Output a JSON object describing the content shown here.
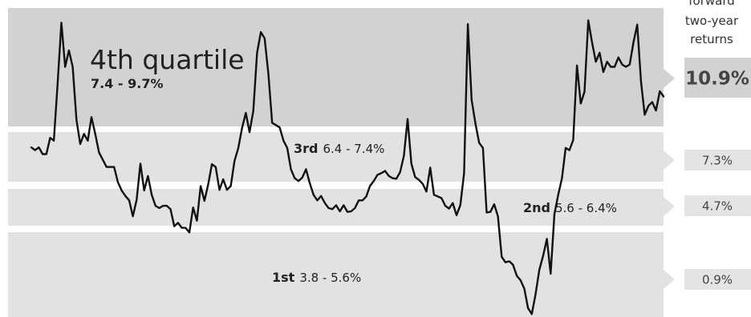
{
  "chart_data": {
    "type": "line",
    "title": "",
    "xlabel": "",
    "ylabel": "",
    "ylim": [
      3.8,
      10.0
    ],
    "grid": false,
    "legend": "none",
    "colors": {
      "line": "#111111",
      "band_q4": "#d2d2d2",
      "band_q3": "#e2e2e2",
      "band_q2": "#e2e2e2",
      "band_q1": "#e2e2e2",
      "return_box_q4": "#d2d2d2",
      "return_box": "#e4e4e4"
    },
    "header": {
      "line1": "forward",
      "line2": "two-year",
      "line3": "returns"
    },
    "bands": [
      {
        "id": "q4",
        "name": "4th quartile",
        "range": "7.4 - 9.7%",
        "low": 7.4,
        "high": 9.7,
        "forward_return": "10.9%"
      },
      {
        "id": "q3",
        "name": "3rd",
        "range": "6.4 - 7.4%",
        "low": 6.4,
        "high": 7.4,
        "forward_return": "7.3%"
      },
      {
        "id": "q2",
        "name": "2nd",
        "range": "5.6 - 6.4%",
        "low": 5.6,
        "high": 6.4,
        "forward_return": "4.7%"
      },
      {
        "id": "q1",
        "name": "1st",
        "range": "3.8 - 5.6%",
        "low": 3.8,
        "high": 5.6,
        "forward_return": "0.9%"
      }
    ],
    "series": [
      {
        "values": [
          7.07,
          7.02,
          7.07,
          6.95,
          6.95,
          7.24,
          7.19,
          8.36,
          9.66,
          8.72,
          9.07,
          8.72,
          7.59,
          7.13,
          7.31,
          7.19,
          7.65,
          7.31,
          6.98,
          6.85,
          6.72,
          6.72,
          6.72,
          6.45,
          6.3,
          6.2,
          6.12,
          5.83,
          6.13,
          6.78,
          6.3,
          6.56,
          6.22,
          6.02,
          5.98,
          6.02,
          6.02,
          5.96,
          5.65,
          5.71,
          5.62,
          5.62,
          5.53,
          5.99,
          5.75,
          6.38,
          6.11,
          6.41,
          6.77,
          6.72,
          6.31,
          6.5,
          6.31,
          6.38,
          6.83,
          7.06,
          7.42,
          7.74,
          7.34,
          7.78,
          9.02,
          9.46,
          9.33,
          8.57,
          7.53,
          7.48,
          7.43,
          7.19,
          7.06,
          6.68,
          6.52,
          6.47,
          6.53,
          6.68,
          6.43,
          6.22,
          6.12,
          6.2,
          6.07,
          5.98,
          5.96,
          6.03,
          5.92,
          6.03,
          5.91,
          5.92,
          5.98,
          6.12,
          6.12,
          6.19,
          6.38,
          6.47,
          6.58,
          6.61,
          6.65,
          6.56,
          6.52,
          6.51,
          6.63,
          6.92,
          7.61,
          6.78,
          6.54,
          6.49,
          6.42,
          6.28,
          6.71,
          6.22,
          6.19,
          6.16,
          6.02,
          5.97,
          6.07,
          5.85,
          6.03,
          6.61,
          9.63,
          8.02,
          7.52,
          7.15,
          7.06,
          5.9,
          5.91,
          6.05,
          5.83,
          5.04,
          4.93,
          4.95,
          4.88,
          4.66,
          4.57,
          4.4,
          4.01,
          3.89,
          4.29,
          4.78,
          5.06,
          5.4,
          4.7,
          5.87,
          6.22,
          6.52,
          7.06,
          7.02,
          7.2,
          8.75,
          7.94,
          8.19,
          9.71,
          9.24,
          8.83,
          9.02,
          8.61,
          8.83,
          8.72,
          8.72,
          8.92,
          8.77,
          8.72,
          8.77,
          9.24,
          9.62,
          8.41,
          7.7,
          7.89,
          7.97,
          7.79,
          8.2,
          8.09
        ]
      }
    ]
  }
}
